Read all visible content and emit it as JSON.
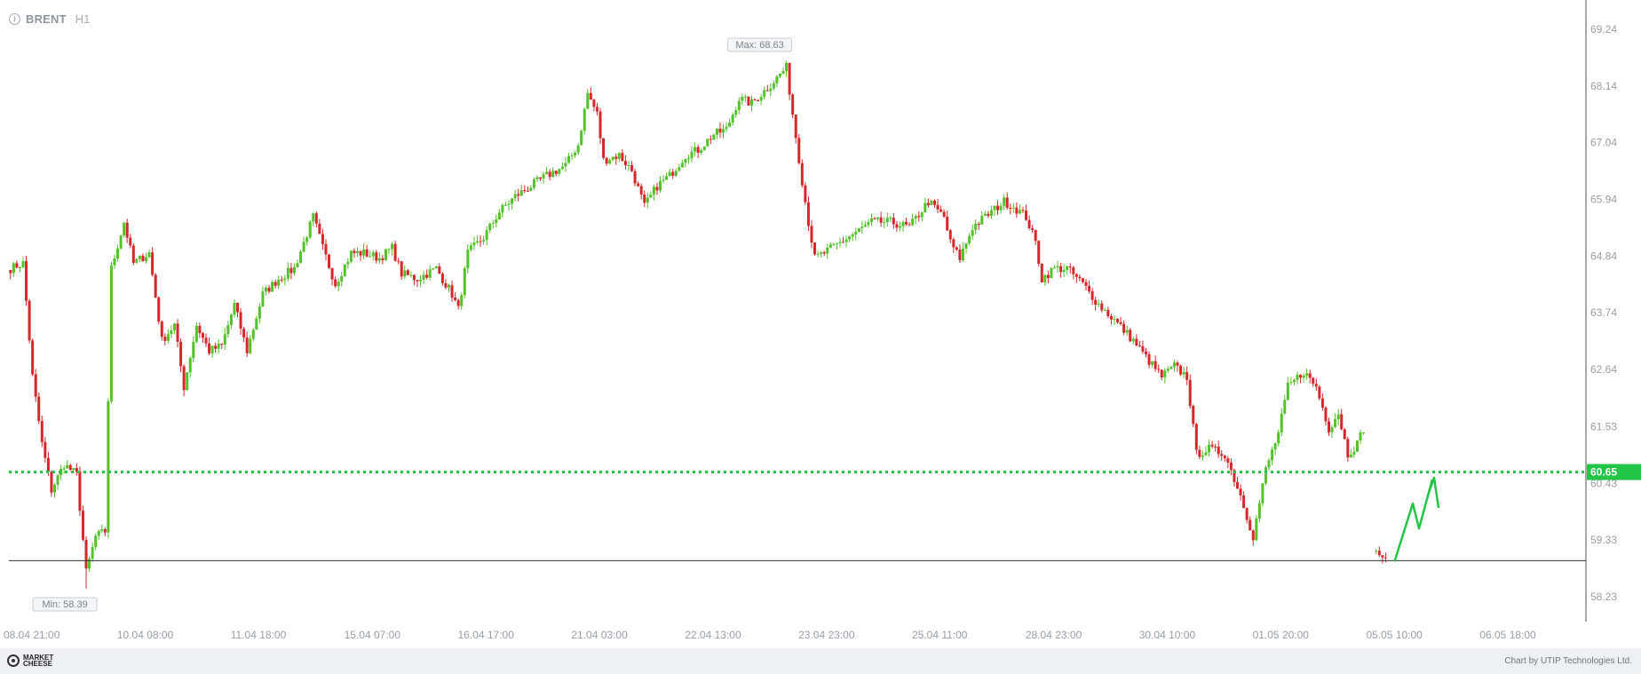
{
  "header": {
    "info_icon": "info-icon",
    "symbol": "BRENT",
    "timeframe": "H1"
  },
  "footer": {
    "logo_text": "MARKET CHEESE",
    "credit": "Chart by UTIP Technologies Ltd."
  },
  "colors": {
    "up": "#54c22a",
    "down": "#d9262b",
    "level": "#22c546",
    "price_badge": "#22c546",
    "axis_text": "#9aa0a6",
    "hline": "#333333"
  },
  "chart_data": {
    "type": "candlestick",
    "title": "",
    "y_ticks": [
      "69.24",
      "68.14",
      "67.04",
      "65.94",
      "64.84",
      "63.74",
      "62.64",
      "61.53",
      "60.43",
      "59.33",
      "58.23"
    ],
    "ylim": [
      57.85,
      69.55
    ],
    "x_labels": [
      "08.04 21:00",
      "10.04 08:00",
      "11.04 18:00",
      "15.04 07:00",
      "16.04 17:00",
      "21.04 03:00",
      "22.04 13:00",
      "23.04 23:00",
      "25.04 11:00",
      "28.04 23:00",
      "30.04 10:00",
      "01.05 20:00",
      "05.05 10:00",
      "06.05 18:00"
    ],
    "x_label_bars": [
      0,
      36,
      72,
      108,
      144,
      180,
      216,
      252,
      288,
      324,
      360,
      396,
      432,
      468
    ],
    "total_bars": 500,
    "grid": false,
    "max_label": "Max: 68.63",
    "max_value": 68.63,
    "min_label": "Min: 58.39",
    "min_value": 58.39,
    "current_price_label": "60.65",
    "current_price": 60.65,
    "support_line": 58.93,
    "arrow": "up",
    "path": [
      [
        0,
        64.6
      ],
      [
        4,
        64.7
      ],
      [
        7,
        62.5
      ],
      [
        10,
        61.2
      ],
      [
        13,
        60.3
      ],
      [
        17,
        60.8
      ],
      [
        21,
        60.6
      ],
      [
        24,
        58.7
      ],
      [
        27,
        59.4
      ],
      [
        30,
        59.5
      ],
      [
        32,
        64.6
      ],
      [
        36,
        65.5
      ],
      [
        39,
        64.7
      ],
      [
        44,
        64.9
      ],
      [
        48,
        63.2
      ],
      [
        52,
        63.5
      ],
      [
        55,
        62.3
      ],
      [
        59,
        63.5
      ],
      [
        63,
        63.0
      ],
      [
        67,
        63.1
      ],
      [
        71,
        63.9
      ],
      [
        75,
        63.0
      ],
      [
        80,
        64.1
      ],
      [
        85,
        64.4
      ],
      [
        90,
        64.6
      ],
      [
        96,
        65.6
      ],
      [
        99,
        65.0
      ],
      [
        103,
        64.3
      ],
      [
        108,
        64.9
      ],
      [
        112,
        64.9
      ],
      [
        117,
        64.8
      ],
      [
        121,
        65.0
      ],
      [
        124,
        64.5
      ],
      [
        129,
        64.4
      ],
      [
        135,
        64.6
      ],
      [
        140,
        64.1
      ],
      [
        142,
        63.8
      ],
      [
        145,
        64.9
      ],
      [
        150,
        65.2
      ],
      [
        155,
        65.7
      ],
      [
        160,
        66.0
      ],
      [
        165,
        66.2
      ],
      [
        170,
        66.4
      ],
      [
        176,
        66.6
      ],
      [
        180,
        67.0
      ],
      [
        183,
        68.0
      ],
      [
        186,
        67.6
      ],
      [
        188,
        66.7
      ],
      [
        193,
        66.8
      ],
      [
        197,
        66.5
      ],
      [
        201,
        65.8
      ],
      [
        205,
        66.2
      ],
      [
        209,
        66.4
      ],
      [
        214,
        66.8
      ],
      [
        218,
        66.9
      ],
      [
        223,
        67.2
      ],
      [
        227,
        67.3
      ],
      [
        231,
        67.9
      ],
      [
        235,
        67.8
      ],
      [
        240,
        68.1
      ],
      [
        246,
        68.5
      ],
      [
        248,
        67.6
      ],
      [
        251,
        66.3
      ],
      [
        253,
        65.5
      ],
      [
        255,
        64.8
      ],
      [
        258,
        64.9
      ],
      [
        263,
        65.1
      ],
      [
        268,
        65.3
      ],
      [
        273,
        65.5
      ],
      [
        279,
        65.5
      ],
      [
        285,
        65.4
      ],
      [
        291,
        65.9
      ],
      [
        296,
        65.6
      ],
      [
        298,
        65.1
      ],
      [
        301,
        64.8
      ],
      [
        305,
        65.4
      ],
      [
        311,
        65.7
      ],
      [
        315,
        65.9
      ],
      [
        318,
        65.8
      ],
      [
        322,
        65.6
      ],
      [
        325,
        65.1
      ],
      [
        327,
        64.4
      ],
      [
        331,
        64.6
      ],
      [
        335,
        64.6
      ],
      [
        340,
        64.3
      ],
      [
        345,
        63.9
      ],
      [
        350,
        63.6
      ],
      [
        356,
        63.2
      ],
      [
        361,
        62.8
      ],
      [
        365,
        62.5
      ],
      [
        369,
        62.7
      ],
      [
        373,
        62.5
      ],
      [
        376,
        61.0
      ],
      [
        380,
        61.1
      ],
      [
        385,
        61.0
      ],
      [
        390,
        60.2
      ],
      [
        394,
        59.4
      ],
      [
        398,
        60.7
      ],
      [
        402,
        61.4
      ],
      [
        405,
        62.3
      ],
      [
        410,
        62.6
      ],
      [
        414,
        62.3
      ],
      [
        418,
        61.5
      ],
      [
        421,
        61.8
      ],
      [
        424,
        61.0
      ],
      [
        427,
        61.2
      ],
      [
        429,
        61.5
      ]
    ],
    "gap_bars": [
      430,
      433
    ],
    "after_gap": [
      [
        433,
        59.1
      ],
      [
        436,
        58.95
      ]
    ]
  }
}
